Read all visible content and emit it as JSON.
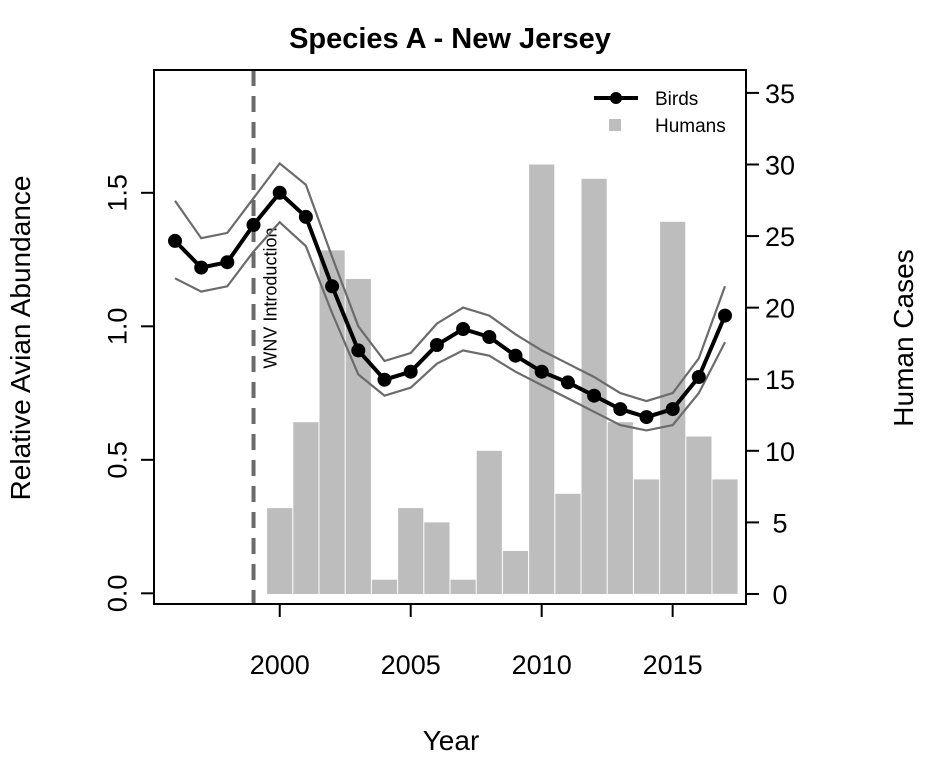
{
  "chart_data": {
    "type": "line",
    "title": "Species A - New Jersey",
    "xlabel": "Year",
    "ylabel": "Relative Avian Abundance",
    "y2label": "Human Cases",
    "xlim": [
      1995.2,
      2017.8
    ],
    "ylim": [
      -0.04,
      1.96
    ],
    "y2lim": [
      -0.7,
      36.6
    ],
    "x_ticks": [
      2000,
      2005,
      2010,
      2015
    ],
    "y_ticks": [
      0.0,
      0.5,
      1.0,
      1.5
    ],
    "y_tick_labels": [
      "0.0",
      "0.5",
      "1.0",
      "1.5"
    ],
    "y2_ticks": [
      0,
      5,
      10,
      15,
      20,
      25,
      30,
      35
    ],
    "legend": {
      "position": "top-right",
      "entries": [
        "Birds",
        "Humans"
      ]
    },
    "annotation": {
      "x": 1999,
      "label": "WNV Introduction"
    },
    "colors": {
      "birds": "#000000",
      "ci": "#6b6b6b",
      "humans": "#bdbdbd",
      "vline": "#6b6b6b"
    },
    "series": [
      {
        "name": "Birds",
        "kind": "line",
        "x": [
          1996,
          1997,
          1998,
          1999,
          2000,
          2001,
          2002,
          2003,
          2004,
          2005,
          2006,
          2007,
          2008,
          2009,
          2010,
          2011,
          2012,
          2013,
          2014,
          2015,
          2016,
          2017
        ],
        "values": [
          1.32,
          1.22,
          1.24,
          1.38,
          1.5,
          1.41,
          1.15,
          0.91,
          0.8,
          0.83,
          0.93,
          0.99,
          0.96,
          0.89,
          0.83,
          0.79,
          0.74,
          0.69,
          0.66,
          0.69,
          0.81,
          1.04
        ],
        "upper": [
          1.47,
          1.33,
          1.35,
          1.48,
          1.61,
          1.53,
          1.26,
          1.0,
          0.87,
          0.9,
          1.01,
          1.07,
          1.04,
          0.97,
          0.91,
          0.86,
          0.81,
          0.75,
          0.72,
          0.75,
          0.88,
          1.15
        ],
        "lower": [
          1.18,
          1.13,
          1.15,
          1.28,
          1.39,
          1.3,
          1.05,
          0.82,
          0.74,
          0.77,
          0.86,
          0.91,
          0.89,
          0.83,
          0.78,
          0.73,
          0.68,
          0.63,
          0.61,
          0.63,
          0.75,
          0.94
        ]
      },
      {
        "name": "Humans",
        "kind": "bar",
        "x": [
          2000,
          2001,
          2002,
          2003,
          2004,
          2005,
          2006,
          2007,
          2008,
          2009,
          2010,
          2011,
          2012,
          2013,
          2014,
          2015,
          2016,
          2017
        ],
        "values": [
          6,
          12,
          24,
          22,
          1,
          6,
          5,
          1,
          10,
          3,
          30,
          7,
          29,
          12,
          8,
          26,
          11,
          8
        ]
      }
    ]
  }
}
